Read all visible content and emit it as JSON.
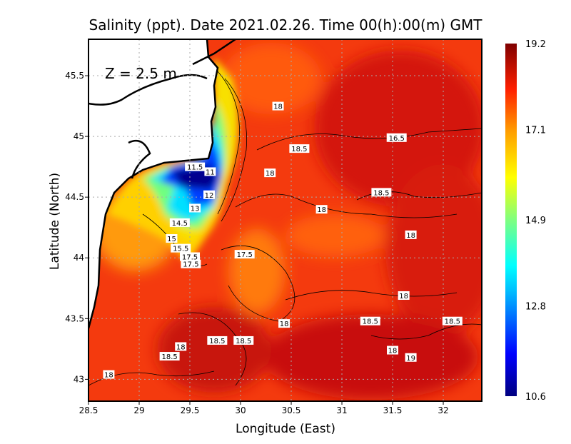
{
  "chart_data": {
    "type": "heatmap",
    "title": "Salinity (ppt). Date 2021.02.26. Time 00(h):00(m) GMT",
    "annotation": "Z = 2.5 m",
    "xlabel": "Longitude (East)",
    "ylabel": "Latitude (North)",
    "xlim": [
      28.5,
      32.38
    ],
    "ylim": [
      42.82,
      45.8
    ],
    "xticks": [
      "28.5",
      "29",
      "29.5",
      "30",
      "30.5",
      "31",
      "31.5",
      "32"
    ],
    "yticks": [
      "45.5",
      "45",
      "44.5",
      "44",
      "43.5",
      "43"
    ],
    "grid": true,
    "colorbar": {
      "min": 10.6,
      "max": 19.2,
      "ticks": [
        "19.2",
        "17.1",
        "14.9",
        "12.8",
        "10.6"
      ],
      "colormap": "jet",
      "colors": [
        "#00007f",
        "#0000ff",
        "#00bfff",
        "#00ffff",
        "#7fff7f",
        "#ffff00",
        "#ff9f00",
        "#ff2000",
        "#7f0000"
      ]
    },
    "contour_labels": [
      {
        "text": "18",
        "lon": 30.37,
        "lat": 45.25
      },
      {
        "text": "16.5",
        "lon": 31.54,
        "lat": 44.99
      },
      {
        "text": "18.5",
        "lon": 30.58,
        "lat": 44.9
      },
      {
        "text": "11.5",
        "lon": 29.55,
        "lat": 44.75
      },
      {
        "text": "11",
        "lon": 29.7,
        "lat": 44.71
      },
      {
        "text": "18",
        "lon": 30.29,
        "lat": 44.7
      },
      {
        "text": "12",
        "lon": 29.69,
        "lat": 44.52
      },
      {
        "text": "18.5",
        "lon": 31.39,
        "lat": 44.54
      },
      {
        "text": "13",
        "lon": 29.55,
        "lat": 44.41
      },
      {
        "text": "18",
        "lon": 30.8,
        "lat": 44.4
      },
      {
        "text": "14.5",
        "lon": 29.4,
        "lat": 44.29
      },
      {
        "text": "18",
        "lon": 31.68,
        "lat": 44.19
      },
      {
        "text": "15",
        "lon": 29.32,
        "lat": 44.16
      },
      {
        "text": "15.5",
        "lon": 29.41,
        "lat": 44.08
      },
      {
        "text": "17.5",
        "lon": 30.04,
        "lat": 44.03
      },
      {
        "text": "17.5",
        "lon": 29.5,
        "lat": 44.01
      },
      {
        "text": "17.5",
        "lon": 29.51,
        "lat": 43.95
      },
      {
        "text": "18",
        "lon": 31.61,
        "lat": 43.69
      },
      {
        "text": "18",
        "lon": 30.43,
        "lat": 43.46
      },
      {
        "text": "18.5",
        "lon": 31.28,
        "lat": 43.48
      },
      {
        "text": "18.5",
        "lon": 32.09,
        "lat": 43.48
      },
      {
        "text": "18",
        "lon": 29.41,
        "lat": 43.27
      },
      {
        "text": "18.5",
        "lon": 29.77,
        "lat": 43.32
      },
      {
        "text": "18.5",
        "lon": 30.03,
        "lat": 43.32
      },
      {
        "text": "18",
        "lon": 31.5,
        "lat": 43.24
      },
      {
        "text": "19",
        "lon": 31.68,
        "lat": 43.18
      },
      {
        "text": "18.5",
        "lon": 29.3,
        "lat": 43.19
      },
      {
        "text": "18",
        "lon": 28.7,
        "lat": 43.04
      }
    ]
  }
}
